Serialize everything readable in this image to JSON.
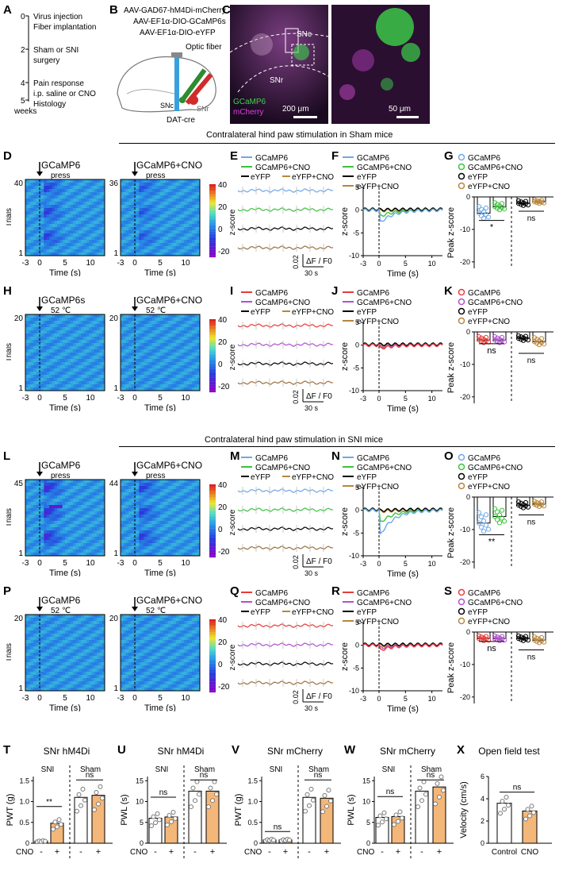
{
  "panels": [
    "A",
    "B",
    "C",
    "D",
    "E",
    "F",
    "G",
    "H",
    "I",
    "J",
    "K",
    "L",
    "M",
    "N",
    "O",
    "P",
    "Q",
    "R",
    "S",
    "T",
    "U",
    "V",
    "W",
    "X"
  ],
  "timeline": {
    "ticks": [
      "0",
      "2",
      "4",
      "5"
    ],
    "unit": "weeks",
    "events": [
      "Virus injection",
      "Fiber implantation",
      "Sham or SNI",
      "surgery",
      "Pain response",
      "i.p. saline or CNO",
      "Histology"
    ]
  },
  "construct": {
    "lines": [
      "AAV-GAD67-hM4Di-mCherry",
      "AAV-EF1α-DIO-GCaMP6s",
      "AAV-EF1α-DIO-eYFP"
    ],
    "optic": "Optic fiber",
    "snc": "SNc",
    "snr": "SNr",
    "mouse": "DAT-cre"
  },
  "histology": {
    "snc": "SNc",
    "snr": "SNr",
    "gcamp": "GCaMP6",
    "mcherry": "mCherry",
    "scale1": "200 μm",
    "scale2": "50 μm"
  },
  "sections": {
    "sham": "Contralateral hind paw stimulation in Sham mice",
    "sni": "Contralateral hind paw stimulation in SNI mice"
  },
  "heat": {
    "D1": {
      "title": "GCaMP6",
      "stim": "press",
      "top": "40"
    },
    "D2": {
      "title": "GCaMP6+CNO",
      "stim": "press",
      "top": "36"
    },
    "H1": {
      "title": "GCaMP6s",
      "stim": "52 ℃",
      "top": "20"
    },
    "H2": {
      "title": "GCaMP6+CNO",
      "stim": "52 ℃",
      "top": "20"
    },
    "L1": {
      "title": "GCaMP6",
      "stim": "press",
      "top": "45"
    },
    "L2": {
      "title": "GCaMP6+CNO",
      "stim": "press",
      "top": "44"
    },
    "P1": {
      "title": "GCaMP6",
      "stim": "52 ℃",
      "top": "20"
    },
    "P2": {
      "title": "GCaMP6+CNO",
      "stim": "52 ℃",
      "top": "20"
    },
    "bottom": "1",
    "trials": "Trials",
    "xlabel": "Time (s)",
    "xticks": [
      "-3",
      "0",
      "5",
      "10"
    ],
    "cbar": [
      "40",
      "20",
      "0",
      "-20"
    ],
    "zscore": "z-score"
  },
  "legend": {
    "g": "GCaMP6",
    "gc": "GCaMP6+CNO",
    "e": "eYFP",
    "ec": "eYFP+CNO"
  },
  "traces": {
    "scaleY": "0.02",
    "scaleLbl": "ΔF / F0",
    "scaleX": "30 s"
  },
  "avg": {
    "ylabel": "z-score",
    "xlabel": "Time (s)",
    "xticks": [
      "-3",
      "0",
      "5",
      "10"
    ],
    "yticks": [
      "5",
      "0",
      "-5",
      "-10"
    ]
  },
  "peak": {
    "ylabel": "Peak z-score",
    "yticks": [
      "0",
      "-10",
      "-20"
    ],
    "G": {
      "sig1": "*",
      "sig2": "ns"
    },
    "K": {
      "sig1": "ns",
      "sig2": "ns"
    },
    "O": {
      "sig1": "**",
      "sig2": "ns"
    },
    "S": {
      "sig1": "ns",
      "sig2": "ns"
    }
  },
  "behavior": {
    "T": {
      "title": "SNr hM4Di",
      "ylabel": "PWT (g)",
      "yticks": [
        "0",
        "0.5",
        "1.0",
        "1.5"
      ],
      "sig1": "**",
      "sig2": "ns"
    },
    "U": {
      "title": "SNr hM4Di",
      "ylabel": "PWL (s)",
      "yticks": [
        "0",
        "5",
        "10",
        "15"
      ],
      "sig1": "ns",
      "sig2": "ns"
    },
    "V": {
      "title": "SNr mCherry",
      "ylabel": "PWT (g)",
      "yticks": [
        "0",
        "0.5",
        "1.0",
        "1.5"
      ],
      "sig1": "ns",
      "sig2": "ns"
    },
    "W": {
      "title": "SNr mCherry",
      "ylabel": "PWL (s)",
      "yticks": [
        "0",
        "5",
        "10",
        "15"
      ],
      "sig1": "ns",
      "sig2": "ns"
    },
    "X": {
      "title": "Open field test",
      "ylabel": "Velocity (cm/s)",
      "yticks": [
        "0",
        "2",
        "4",
        "6"
      ],
      "sig": "ns",
      "cats": [
        "Control",
        "CNO"
      ]
    },
    "groups": [
      "SNI",
      "Sham"
    ],
    "cno": "CNO",
    "minus": "-",
    "plus": "+"
  }
}
